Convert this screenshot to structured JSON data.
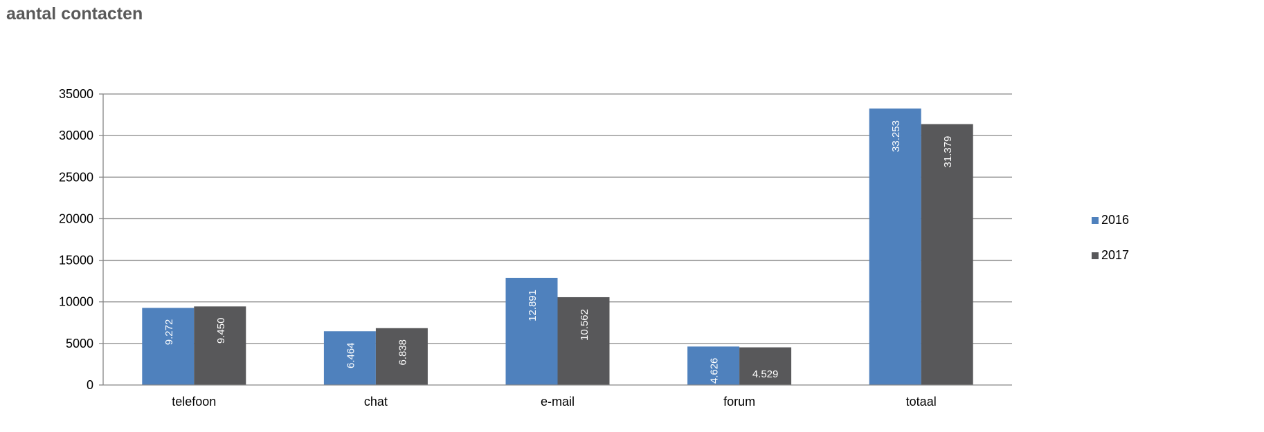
{
  "title": "aantal contacten",
  "chart_data": {
    "type": "bar",
    "categories": [
      "telefoon",
      "chat",
      "e-mail",
      "forum",
      "totaal"
    ],
    "series": [
      {
        "name": "2016",
        "color": "#4f81bd",
        "values": [
          9272,
          6464,
          12891,
          4626,
          33253
        ],
        "labels": [
          "9.272",
          "6.464",
          "12.891",
          "4.626",
          "33.253"
        ]
      },
      {
        "name": "2017",
        "color": "#58585a",
        "values": [
          9450,
          6838,
          10562,
          4529,
          31379
        ],
        "labels": [
          "9.450",
          "6.838",
          "10.562",
          "4.529",
          "31.379"
        ]
      }
    ],
    "ylim": [
      0,
      35000
    ],
    "yticks": [
      0,
      5000,
      10000,
      15000,
      20000,
      25000,
      30000,
      35000
    ],
    "grid": true,
    "legend_position": "right",
    "label_overrides": {
      "1-3": "horizontal"
    }
  }
}
